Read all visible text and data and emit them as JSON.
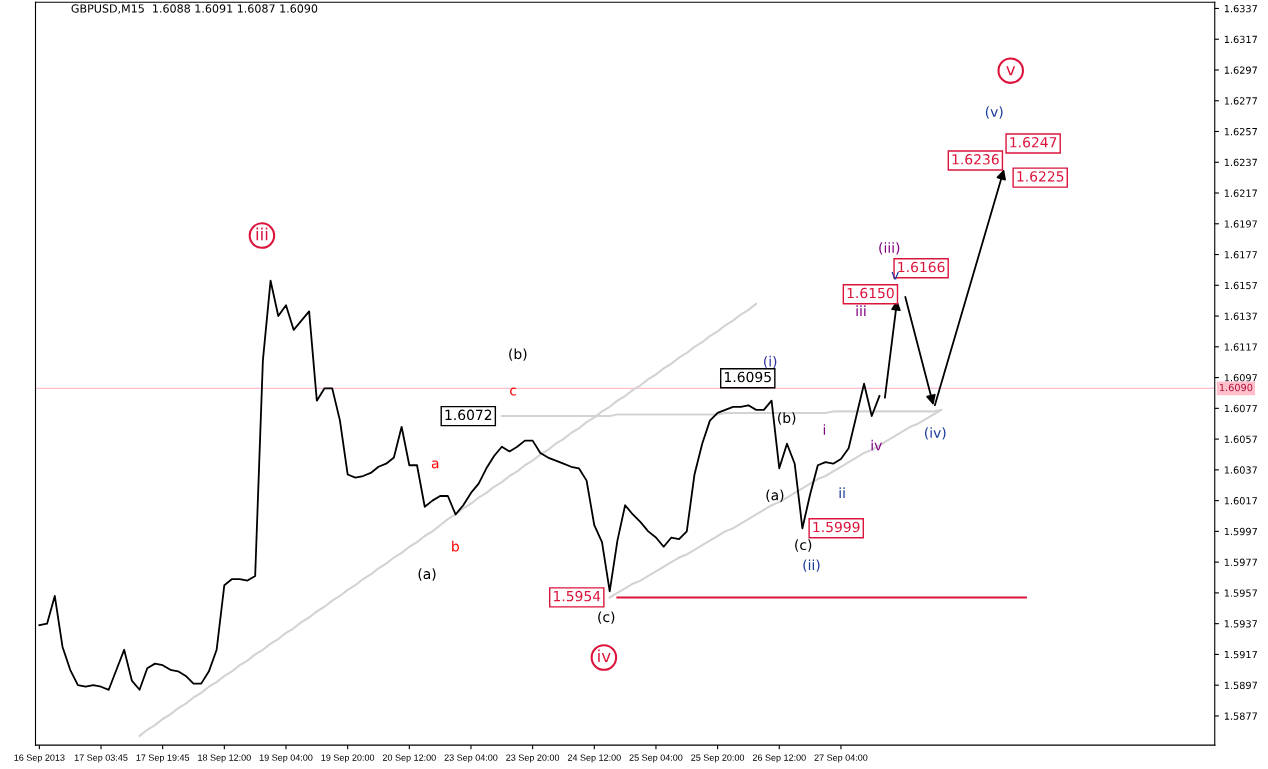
{
  "chart_data": {
    "type": "line",
    "title": "GBPUSD,M15  1.6088 1.6091 1.6087 1.6090",
    "categories": [
      "16 Sep 2013",
      null,
      null,
      null,
      null,
      null,
      null,
      null,
      "17 Sep 03:45",
      null,
      null,
      null,
      null,
      null,
      null,
      null,
      "17 Sep 19:45",
      null,
      null,
      null,
      null,
      null,
      null,
      null,
      "18 Sep 12:00",
      null,
      null,
      null,
      null,
      null,
      null,
      null,
      "19 Sep 04:00",
      null,
      null,
      null,
      null,
      null,
      null,
      null,
      "19 Sep 20:00",
      null,
      null,
      null,
      null,
      null,
      null,
      null,
      "20 Sep 12:00",
      null,
      null,
      null,
      null,
      null,
      null,
      null,
      "23 Sep 04:00",
      null,
      null,
      null,
      null,
      null,
      null,
      null,
      "23 Sep 20:00",
      null,
      null,
      null,
      null,
      null,
      null,
      null,
      "24 Sep 12:00",
      null,
      null,
      null,
      null,
      null,
      null,
      null,
      "25 Sep 04:00",
      null,
      null,
      null,
      null,
      null,
      null,
      null,
      "25 Sep 20:00",
      null,
      null,
      null,
      null,
      null,
      null,
      null,
      "26 Sep 12:00",
      null,
      null,
      null,
      null,
      null,
      null,
      null,
      "27 Sep 04:00",
      null,
      null,
      null,
      null,
      null,
      null,
      null,
      null,
      null,
      null,
      null,
      null,
      null,
      null,
      null,
      null,
      null,
      null,
      null,
      null,
      null,
      null,
      null,
      null,
      null,
      null,
      null,
      null,
      null,
      null,
      null,
      null,
      null,
      null,
      null,
      null,
      null,
      null,
      null,
      null,
      null,
      null,
      null,
      null,
      null,
      null,
      null,
      null
    ],
    "ylim": [
      1.5858,
      1.6341
    ],
    "yticks": [
      1.5877,
      1.5897,
      1.5917,
      1.5937,
      1.5957,
      1.5977,
      1.5997,
      1.6017,
      1.6037,
      1.6057,
      1.6077,
      1.6097,
      1.6117,
      1.6137,
      1.6157,
      1.6177,
      1.6197,
      1.6217,
      1.6237,
      1.6257,
      1.6277,
      1.6297,
      1.6317,
      1.6337
    ],
    "grid": false,
    "series": [
      {
        "color": "#000000",
        "values": [
          1.5936,
          1.5937,
          1.5955,
          1.5922,
          1.5907,
          1.5897,
          1.5896,
          1.5897,
          1.5896,
          1.5894,
          1.5907,
          1.592,
          1.59,
          1.5894,
          1.5908,
          1.5911,
          1.591,
          1.5907,
          1.5906,
          1.5903,
          1.5898,
          1.5898,
          1.5906,
          1.592,
          1.5962,
          1.5966,
          1.5966,
          1.5965,
          1.5968,
          1.6108,
          1.616,
          1.6137,
          1.6144,
          1.6128,
          1.6134,
          1.614,
          1.6082,
          1.609,
          1.609,
          1.6069,
          1.6034,
          1.6032,
          1.6033,
          1.6035,
          1.6039,
          1.6041,
          1.6045,
          1.6065,
          1.604,
          1.604,
          1.6013,
          1.6017,
          1.602,
          1.602,
          1.6008,
          1.6014,
          1.6022,
          1.6028,
          1.6038,
          1.6046,
          1.6052,
          1.6049,
          1.6052,
          1.6056,
          1.6056,
          1.6048,
          1.6045,
          1.6043,
          1.6041,
          1.6039,
          1.6038,
          1.603,
          1.6001,
          1.599,
          1.5958,
          1.5991,
          1.6014,
          1.6008,
          1.6003,
          1.5997,
          1.5993,
          1.5987,
          1.5993,
          1.5992,
          1.5997,
          1.6034,
          1.6054,
          1.6069,
          1.6074,
          1.6076,
          1.6078,
          1.6078,
          1.6079,
          1.6076,
          1.6076,
          1.6082,
          1.6038,
          1.6054,
          1.6041,
          1.5999,
          1.6021,
          1.604,
          1.6042,
          1.6041,
          1.6044,
          1.6051,
          1.6072,
          1.6093,
          1.6072,
          1.6085,
          null,
          null,
          null,
          null,
          null,
          null,
          null,
          null,
          null,
          null,
          null,
          null,
          null,
          null,
          null,
          null,
          null,
          null,
          null,
          null,
          null,
          null,
          null,
          null,
          null,
          null,
          null,
          null,
          null,
          null,
          null,
          null,
          null,
          null,
          null,
          null,
          null,
          null,
          null,
          null,
          null,
          null,
          null
        ]
      },
      {
        "color": "#d3d3d3",
        "values": [
          null,
          null,
          null,
          null,
          null,
          null,
          null,
          null,
          null,
          null,
          null,
          null,
          null,
          1.5864,
          1.5868,
          1.5871,
          1.5875,
          1.5878,
          1.5882,
          1.5885,
          1.5889,
          1.5892,
          1.5896,
          1.5899,
          1.5903,
          1.5906,
          1.591,
          1.5913,
          1.5917,
          1.592,
          1.5924,
          1.5927,
          1.5931,
          1.5934,
          1.5938,
          1.5941,
          1.5945,
          1.5948,
          1.5952,
          1.5955,
          1.5959,
          1.5962,
          1.5966,
          1.5969,
          1.5973,
          1.5976,
          1.598,
          1.5983,
          1.5987,
          1.599,
          1.5994,
          1.5997,
          1.6001,
          1.6005,
          1.6008,
          1.6012,
          1.6015,
          1.6019,
          1.6022,
          1.6026,
          1.6029,
          1.6033,
          1.6036,
          1.604,
          1.6043,
          1.6047,
          1.605,
          1.6054,
          1.6057,
          1.6061,
          1.6064,
          1.6068,
          1.6071,
          1.6075,
          1.6078,
          1.6082,
          1.6085,
          1.6089,
          1.6092,
          1.6096,
          1.6099,
          1.6103,
          1.6106,
          1.611,
          1.6113,
          1.6117,
          1.612,
          1.6124,
          1.6127,
          1.6131,
          1.6134,
          1.6138,
          1.6141,
          1.6145,
          null,
          null,
          null,
          null,
          null,
          null,
          null,
          null,
          null,
          null,
          null,
          null,
          null,
          null,
          null,
          null,
          null,
          null,
          null,
          null,
          null,
          null,
          null,
          null,
          null,
          null,
          null,
          null,
          null,
          null,
          null,
          null,
          null,
          null,
          null,
          null,
          null,
          null,
          null,
          null,
          null,
          null,
          null,
          null,
          null,
          null,
          null,
          null,
          null,
          null,
          null,
          null,
          null,
          null,
          null,
          null,
          null,
          null,
          null
        ]
      },
      {
        "color": "#d3d3d3",
        "values": [
          null,
          null,
          null,
          null,
          null,
          null,
          null,
          null,
          null,
          null,
          null,
          null,
          null,
          null,
          null,
          null,
          null,
          null,
          null,
          null,
          null,
          null,
          null,
          null,
          null,
          null,
          null,
          null,
          null,
          null,
          null,
          null,
          null,
          null,
          null,
          null,
          null,
          null,
          null,
          null,
          null,
          null,
          null,
          null,
          null,
          null,
          null,
          null,
          null,
          null,
          null,
          null,
          null,
          null,
          null,
          null,
          null,
          null,
          null,
          null,
          null,
          null,
          null,
          null,
          null,
          null,
          null,
          null,
          null,
          null,
          null,
          null,
          null,
          null,
          1.5954,
          1.5957,
          1.596,
          1.5963,
          1.5965,
          1.5968,
          1.5971,
          1.5974,
          1.5977,
          1.598,
          1.5982,
          1.5985,
          1.5988,
          1.5991,
          1.5994,
          1.5997,
          1.5999,
          1.6002,
          1.6005,
          1.6008,
          1.6011,
          1.6014,
          1.6016,
          1.6019,
          1.6022,
          1.6025,
          1.6028,
          1.6031,
          1.6033,
          1.6036,
          1.6039,
          1.6042,
          1.6045,
          1.6048,
          1.605,
          1.6053,
          1.6056,
          1.6059,
          1.6062,
          1.6065,
          1.6067,
          1.607,
          1.6073,
          1.6076,
          null,
          null,
          null,
          null,
          null,
          null,
          null,
          null,
          null,
          null,
          null,
          null,
          null,
          null,
          null,
          null,
          null,
          null,
          null,
          null,
          null,
          null,
          null,
          null,
          null,
          null,
          null,
          null,
          null,
          null,
          null,
          null,
          null,
          null,
          null
        ]
      },
      {
        "color": "#d3d3d3",
        "values": [
          null,
          null,
          null,
          null,
          null,
          null,
          null,
          null,
          null,
          null,
          null,
          null,
          null,
          null,
          null,
          null,
          null,
          null,
          null,
          null,
          null,
          null,
          null,
          null,
          null,
          null,
          null,
          null,
          null,
          null,
          null,
          null,
          null,
          null,
          null,
          null,
          null,
          null,
          null,
          null,
          null,
          null,
          null,
          null,
          null,
          null,
          null,
          null,
          null,
          null,
          null,
          null,
          null,
          null,
          null,
          null,
          null,
          null,
          null,
          null,
          1.6072,
          1.6072,
          1.6072,
          1.6072,
          1.6072,
          1.6072,
          1.6072,
          1.6072,
          1.6072,
          1.6072,
          1.6072,
          1.6072,
          1.6072,
          1.6072,
          1.6072,
          1.6073,
          1.6073,
          1.6073,
          1.6073,
          1.6073,
          1.6073,
          1.6073,
          1.6073,
          1.6073,
          1.6073,
          1.6073,
          1.6073,
          1.6073,
          1.6073,
          1.6074,
          1.6074,
          1.6074,
          1.6074,
          1.6074,
          1.6074,
          1.6074,
          1.6074,
          1.6074,
          1.6074,
          1.6074,
          1.6074,
          1.6074,
          1.6074,
          1.6075,
          1.6075,
          1.6075,
          1.6075,
          1.6075,
          1.6075,
          1.6075,
          1.6075,
          1.6075,
          1.6075,
          1.6075,
          1.6075,
          1.6075,
          1.6075,
          1.6076,
          null,
          null,
          null,
          null,
          null,
          null,
          null,
          null,
          null,
          null,
          null,
          null,
          null,
          null,
          null,
          null,
          null,
          null,
          null,
          null,
          null,
          null,
          null,
          null,
          null,
          null,
          null,
          null,
          null,
          null,
          null,
          null,
          null,
          null,
          null
        ]
      },
      {
        "color": "#dc143c",
        "values": [
          null,
          null,
          null,
          null,
          null,
          null,
          null,
          null,
          null,
          null,
          null,
          null,
          null,
          null,
          null,
          null,
          null,
          null,
          null,
          null,
          null,
          null,
          null,
          null,
          null,
          null,
          null,
          null,
          null,
          null,
          null,
          null,
          null,
          null,
          null,
          null,
          null,
          null,
          null,
          null,
          null,
          null,
          null,
          null,
          null,
          null,
          null,
          null,
          null,
          null,
          null,
          null,
          null,
          null,
          null,
          null,
          null,
          null,
          null,
          null,
          null,
          null,
          null,
          null,
          null,
          null,
          null,
          null,
          null,
          null,
          null,
          null,
          null,
          null,
          null,
          1.5954,
          1.5954,
          1.5954,
          1.5954,
          1.5954,
          1.5954,
          1.5954,
          1.5954,
          1.5954,
          1.5954,
          1.5954,
          1.5954,
          1.5954,
          1.5954,
          1.5954,
          1.5954,
          1.5954,
          1.5954,
          1.5954,
          1.5954,
          1.5954,
          1.5954,
          1.5954,
          1.5954,
          1.5954,
          1.5954,
          1.5954,
          1.5954,
          1.5954,
          1.5954,
          1.5954,
          1.5954,
          1.5954,
          1.5954,
          1.5954,
          1.5954,
          1.5954,
          1.5954,
          1.5954,
          1.5954,
          1.5954,
          1.5954,
          1.5954,
          1.5954,
          1.5954,
          1.5954,
          1.5954,
          1.5954,
          1.5954,
          1.5954,
          1.5954,
          1.5954,
          1.5954,
          1.5954,
          null,
          null,
          null,
          null,
          null,
          null,
          null,
          null,
          null,
          null,
          null,
          null,
          null,
          null,
          null,
          null,
          null,
          null,
          null,
          null,
          null,
          null,
          null,
          null
        ]
      }
    ],
    "ref_lines": [
      {
        "axis": "y",
        "value": 1.609,
        "label": "1.6090",
        "color": "#ffc0cb"
      }
    ],
    "annotations": [
      "1.6072",
      "1.6095",
      "1.5954",
      "1.5999",
      "1.6150",
      "1.6166",
      "1.6236",
      "1.6247",
      "1.6225",
      "iii",
      "iv",
      "v",
      "(b)",
      "c",
      "a",
      "b",
      "(a)",
      "(c)",
      "(i)",
      "(b)",
      "(a)",
      "(c)",
      "(ii)",
      "i",
      "ii",
      "iii",
      "iv",
      "v",
      "(iii)",
      "(iv)",
      "(v)"
    ]
  }
}
